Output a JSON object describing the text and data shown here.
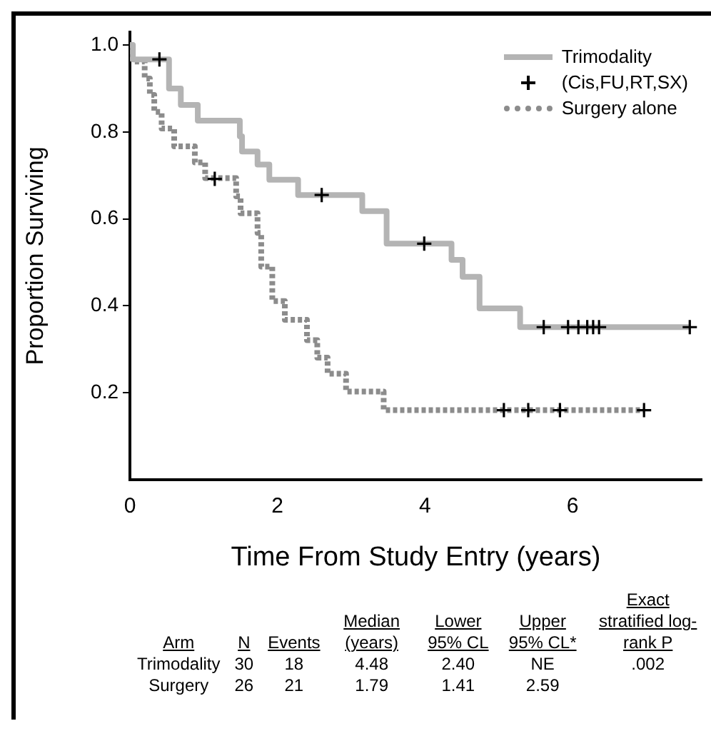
{
  "chart_data": {
    "type": "step",
    "xlabel": "Time From Study Entry (years)",
    "ylabel": "Proportion Surviving",
    "xlim": [
      0,
      7.75
    ],
    "xticks": [
      0,
      2,
      4,
      6
    ],
    "ylim": [
      0,
      1.03
    ],
    "yticks": [
      0.2,
      0.4,
      0.6,
      0.8,
      {
        "value": 1,
        "label": "1.0"
      }
    ],
    "grid": false,
    "legend": "top right",
    "series": [
      {
        "name": "Trimodality",
        "color": "#b4b4b4",
        "line_style": "solid",
        "marker": "none",
        "x": [
          0,
          0.04,
          0.53,
          0.69,
          0.92,
          1.49,
          1.52,
          1.73,
          1.89,
          2.28,
          3.15,
          3.48,
          4.36,
          4.51,
          4.74,
          5.29,
          7.59
        ],
        "values": [
          1.0,
          0.967,
          0.9,
          0.862,
          0.826,
          0.79,
          0.755,
          0.725,
          0.69,
          0.655,
          0.618,
          0.543,
          0.506,
          0.467,
          0.394,
          0.351,
          0.351
        ]
      },
      {
        "name": "(Cis,FU,RT,SX)",
        "type": "scatter",
        "color": "#000000",
        "marker": "cross",
        "x": [
          0.4,
          2.6,
          3.99,
          5.61,
          5.94,
          6.08,
          6.2,
          6.28,
          6.36,
          7.59,
          1.15,
          5.07,
          5.4,
          5.83,
          6.97
        ],
        "values": [
          0.967,
          0.655,
          0.543,
          0.351,
          0.351,
          0.351,
          0.351,
          0.351,
          0.351,
          0.351,
          0.692,
          0.16,
          0.16,
          0.16,
          0.16
        ]
      },
      {
        "name": "Surgery alone",
        "color": "#8c8c8c",
        "line_style": "dotted",
        "marker": "none",
        "x": [
          0,
          0.03,
          0.2,
          0.27,
          0.33,
          0.43,
          0.6,
          0.88,
          1.02,
          1.44,
          1.5,
          1.73,
          1.78,
          1.93,
          2.1,
          2.4,
          2.54,
          2.68,
          2.93,
          3.44,
          6.97
        ],
        "values": [
          1.0,
          0.962,
          0.923,
          0.885,
          0.846,
          0.808,
          0.767,
          0.73,
          0.694,
          0.652,
          0.613,
          0.568,
          0.49,
          0.411,
          0.368,
          0.321,
          0.281,
          0.244,
          0.203,
          0.16,
          0.16
        ]
      }
    ],
    "annotations": [
      "Arm",
      "N",
      "Events",
      "Median (years)",
      "Lower 95% CL",
      "Upper 95% CL*",
      "Exact stratified log-rank P",
      "Trimodality",
      "30",
      "18",
      "4.48",
      "2.40",
      "NE",
      ".002",
      "Surgery",
      "26",
      "21",
      "1.79",
      "1.41",
      "2.59"
    ]
  }
}
